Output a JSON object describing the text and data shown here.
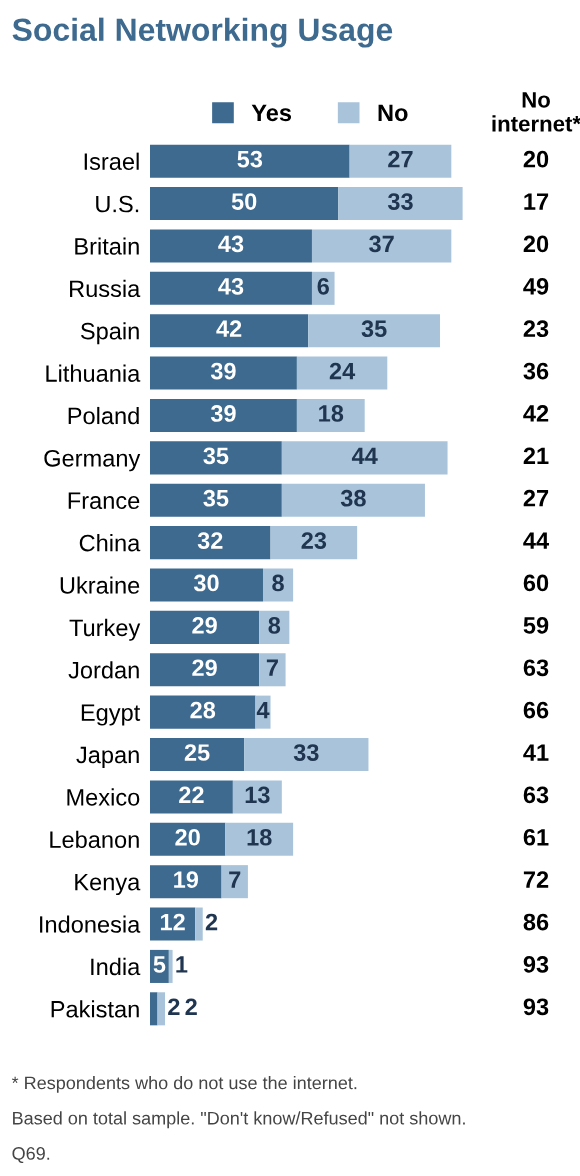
{
  "chart_data": {
    "type": "bar",
    "orientation": "horizontal",
    "stacked": true,
    "data_labels": true,
    "title": "Social Networking Usage",
    "legend": "top",
    "grid": false,
    "tick_labels": "y",
    "categories": [
      "Israel",
      "U.S.",
      "Britain",
      "Russia",
      "Spain",
      "Lithuania",
      "Poland",
      "Germany",
      "France",
      "China",
      "Ukraine",
      "Turkey",
      "Jordan",
      "Egypt",
      "Japan",
      "Mexico",
      "Lebanon",
      "Kenya",
      "Indonesia",
      "India",
      "Pakistan"
    ],
    "series": [
      {
        "name": "Yes",
        "color": "#3e6a8f",
        "values": [
          53,
          50,
          43,
          43,
          42,
          39,
          39,
          35,
          35,
          32,
          30,
          29,
          29,
          28,
          25,
          22,
          20,
          19,
          12,
          5,
          2
        ]
      },
      {
        "name": "No",
        "color": "#a9c4da",
        "values": [
          27,
          33,
          37,
          6,
          35,
          24,
          18,
          44,
          38,
          23,
          8,
          8,
          7,
          4,
          33,
          13,
          18,
          7,
          2,
          1,
          2
        ]
      }
    ],
    "annotations": [
      "No\ninternet*",
      "20",
      "17",
      "20",
      "49",
      "23",
      "36",
      "42",
      "21",
      "27",
      "44",
      "60",
      "59",
      "63",
      "66",
      "41",
      "63",
      "61",
      "72",
      "86",
      "93",
      "93",
      "* Respondents who do not use the internet.",
      "Based on total sample. \"Don't know/Refused\" not shown.",
      "Q69."
    ]
  }
}
